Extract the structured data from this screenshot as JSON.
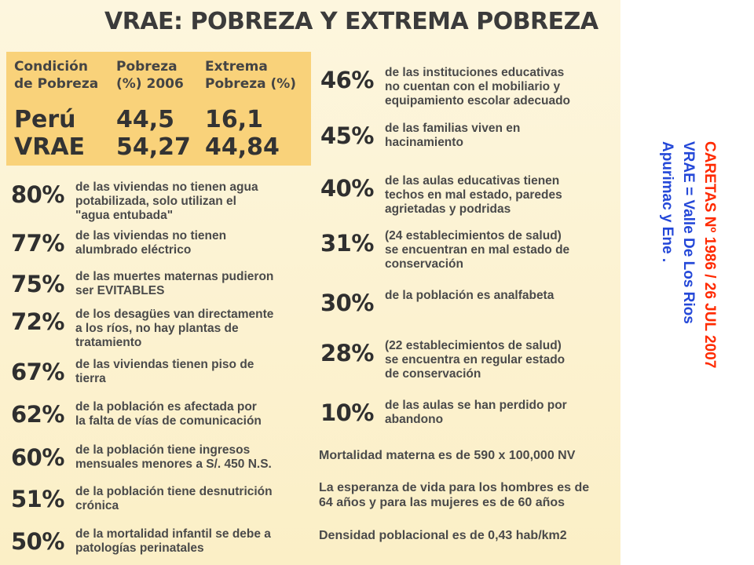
{
  "title": "VRAE: POBREZA Y EXTREMA POBREZA",
  "table": {
    "headers": [
      "Condición\nde Pobreza",
      "Pobreza\n(%) 2006",
      "Extrema\nPobreza (%)"
    ],
    "rows": [
      {
        "name": "Perú",
        "pobreza": "44,5",
        "extrema": "16,1"
      },
      {
        "name": "VRAE",
        "pobreza": "54,27",
        "extrema": "44,84"
      }
    ]
  },
  "left_stats": [
    {
      "pct": "80%",
      "text": "de las viviendas no tienen agua\npotabilizada, solo utilizan el\n\"agua entubada\""
    },
    {
      "pct": "77%",
      "text": "de las viviendas no tienen\nalumbrado eléctrico"
    },
    {
      "pct": "75%",
      "text": "de las muertes maternas pudieron\nser EVITABLES"
    },
    {
      "pct": "72%",
      "text": "de los desagües van directamente\na los ríos, no hay plantas de\ntratamiento"
    },
    {
      "pct": "67%",
      "text": "de las viviendas tienen piso de\ntierra"
    },
    {
      "pct": "62%",
      "text": "de la población es afectada por\nla falta de vías de comunicación"
    },
    {
      "pct": "60%",
      "text": "de la población tiene ingresos\nmensuales menores a S/. 450 N.S."
    },
    {
      "pct": "51%",
      "text": "de la población tiene desnutrición\ncrónica"
    },
    {
      "pct": "50%",
      "text": "de la mortalidad infantil se debe a\npatologías perinatales"
    }
  ],
  "right_stats": [
    {
      "pct": "46%",
      "text": "de las instituciones educativas\nno cuentan con el mobiliario y\nequipamiento escolar adecuado"
    },
    {
      "pct": "45%",
      "text": "de las familias viven en\nhacinamiento"
    },
    {
      "pct": "40%",
      "text": "de las aulas educativas tienen\ntechos en mal estado, paredes\nagrietadas y podridas"
    },
    {
      "pct": "31%",
      "text": "(24 establecimientos de salud)\nse encuentran en mal estado de\nconservación"
    },
    {
      "pct": "30%",
      "text": "de la población es analfabeta"
    },
    {
      "pct": "28%",
      "text": "(22 establecimientos de salud)\nse encuentra en regular estado\nde conservación"
    },
    {
      "pct": "10%",
      "text": "de las aulas se han perdido por\nabandono"
    }
  ],
  "notes": [
    "Mortalidad materna es de 590 x 100,000 NV",
    "La esperanza de vida para los hombres es de\n64 años y para las mujeres es de 60 años",
    "Densidad poblacional es de 0,43 hab/km2"
  ],
  "caption": {
    "line1": "CARETAS Nº 1986 / 26 JUL 2007",
    "line2": "VRAE = Valle De Los Rios",
    "line3": "Apurimac y Ene ."
  },
  "colors": {
    "table_bg": "#f9d27a",
    "panel_bg": "#fbefc6",
    "caption_red": "#ff2a00",
    "caption_blue": "#2448d8"
  }
}
